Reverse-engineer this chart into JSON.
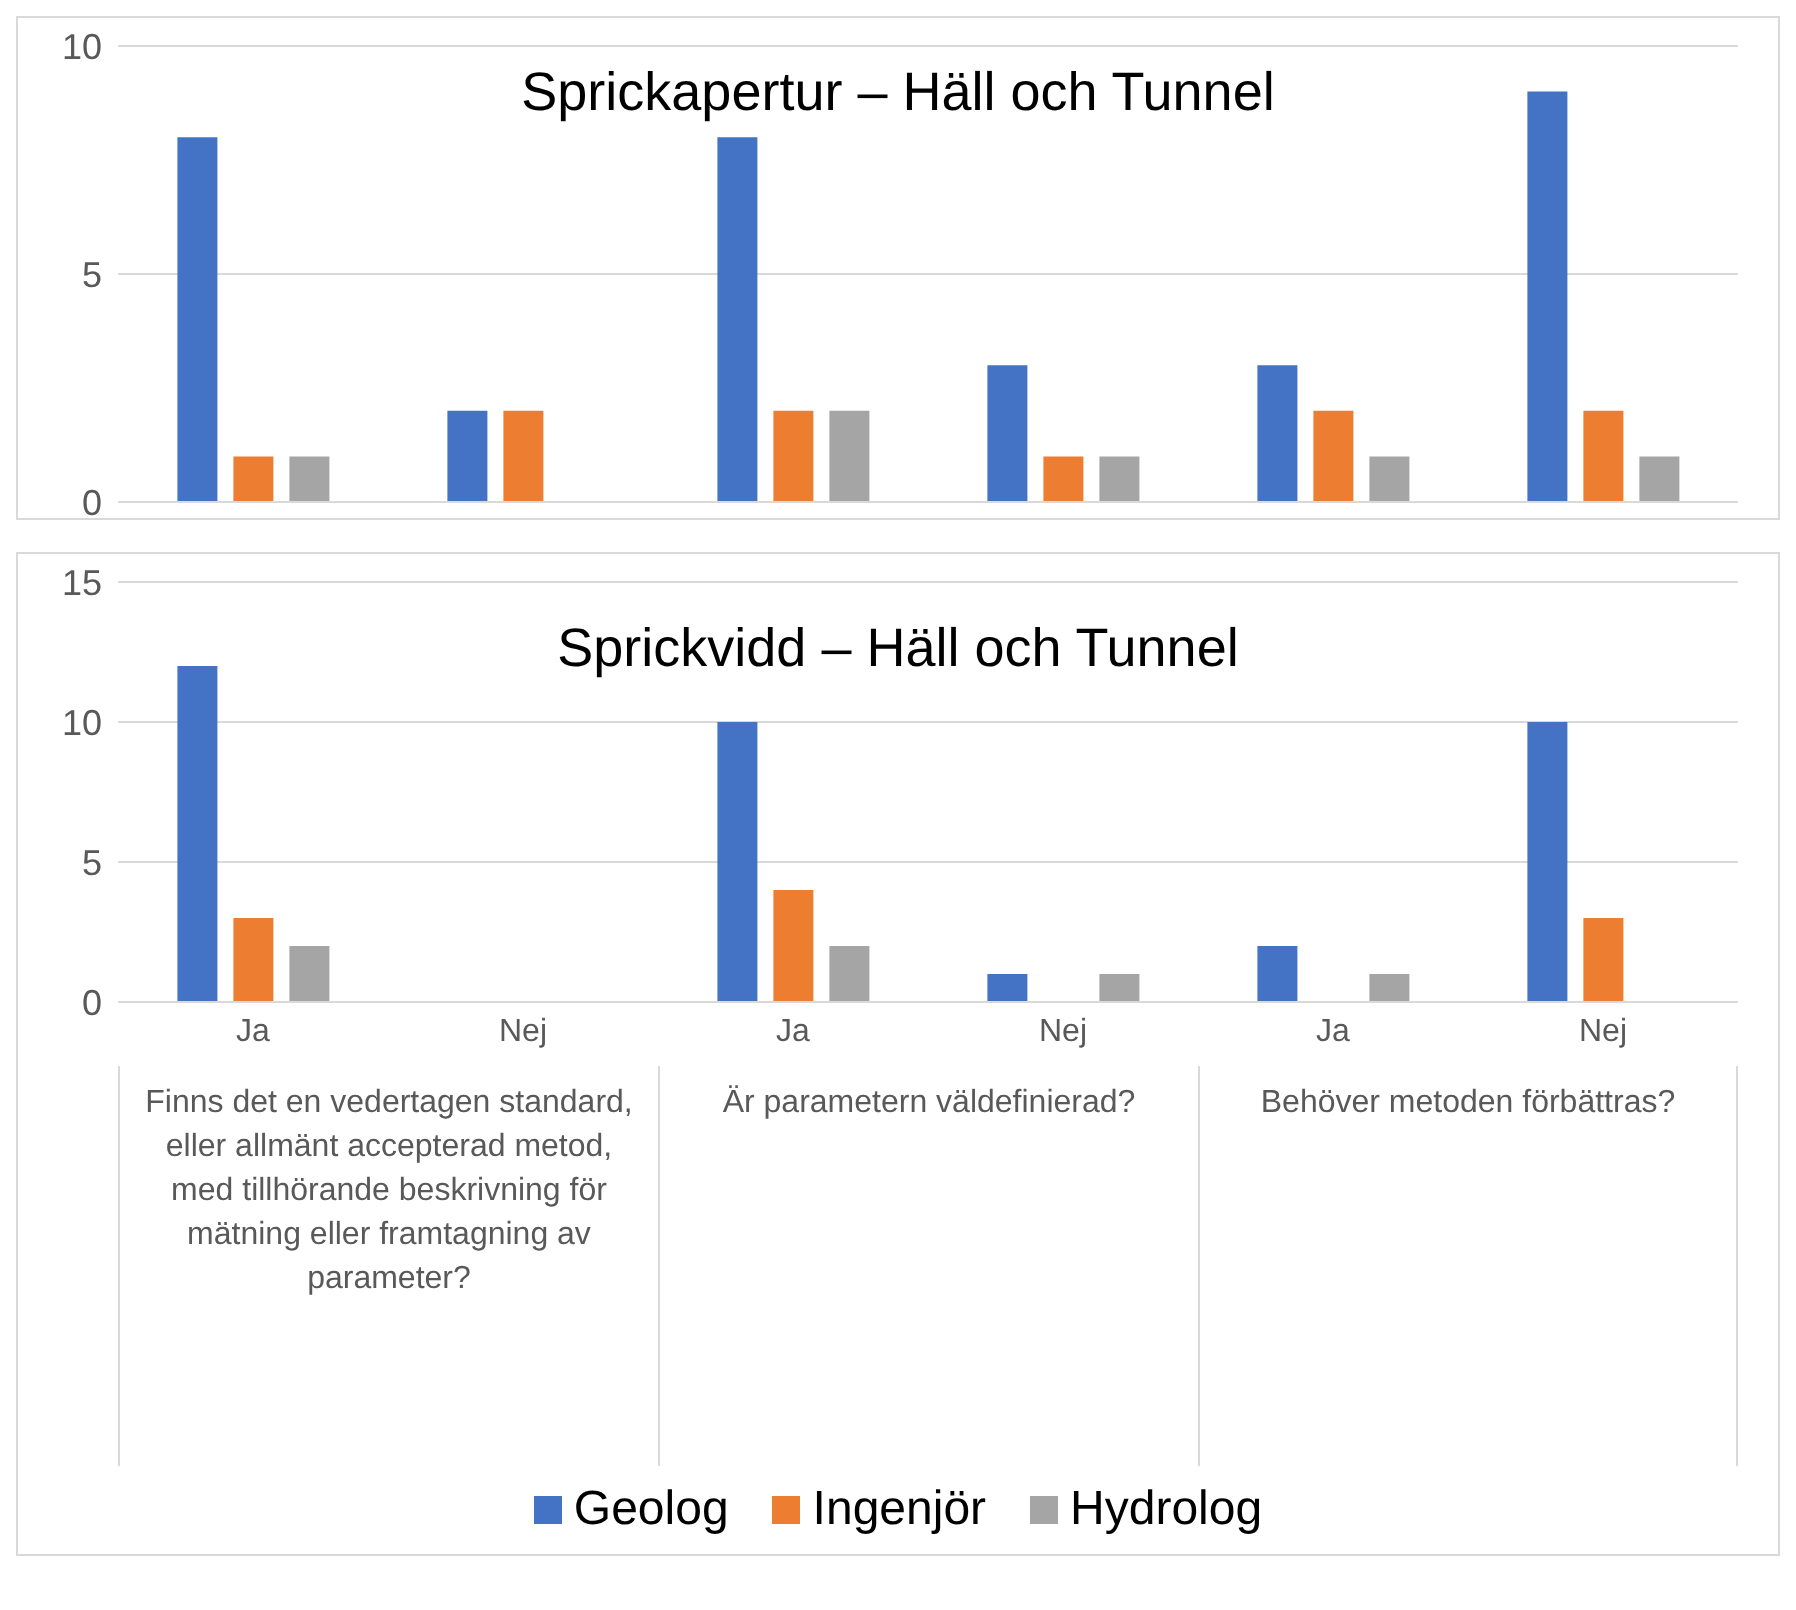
{
  "chart_data": [
    {
      "type": "bar",
      "title": "Sprickapertur – Häll och Tunnel",
      "categories": [
        null,
        null,
        null,
        null,
        null,
        null
      ],
      "series": [
        {
          "color": "#4472c4",
          "values": [
            8,
            2,
            8,
            3,
            3,
            9
          ]
        },
        {
          "color": "#ed7d31",
          "values": [
            1,
            2,
            2,
            1,
            2,
            2
          ]
        },
        {
          "color": "#a5a5a5",
          "values": [
            1,
            0,
            2,
            1,
            1,
            1
          ]
        }
      ],
      "ylim": [
        0,
        10
      ],
      "yticks": [
        0,
        5,
        10
      ],
      "grid": "y",
      "tick_labels": "y",
      "legend": false
    },
    {
      "type": "bar",
      "title": "Sprickvidd – Häll och Tunnel",
      "categories": [
        "Ja",
        "Nej",
        "Ja",
        "Nej",
        "Ja",
        "Nej"
      ],
      "annotations": [
        "Finns det en vedertagen standard, eller allmänt accepterad metod, med tillhörande beskrivning för mätning eller framtagning av parameter?",
        "Är parametern väldefinierad?",
        "Behöver metoden förbättras?"
      ],
      "series": [
        {
          "name": "Geolog",
          "color": "#4472c4",
          "values": [
            12,
            0,
            10,
            1,
            2,
            10
          ]
        },
        {
          "name": "Ingenjör",
          "color": "#ed7d31",
          "values": [
            3,
            0,
            4,
            0,
            0,
            3
          ]
        },
        {
          "name": "Hydrolog",
          "color": "#a5a5a5",
          "values": [
            2,
            0,
            2,
            1,
            1,
            0
          ]
        }
      ],
      "ylim": [
        0,
        15
      ],
      "yticks": [
        0,
        5,
        10,
        15
      ],
      "grid": "y",
      "legend": "bottom"
    }
  ]
}
